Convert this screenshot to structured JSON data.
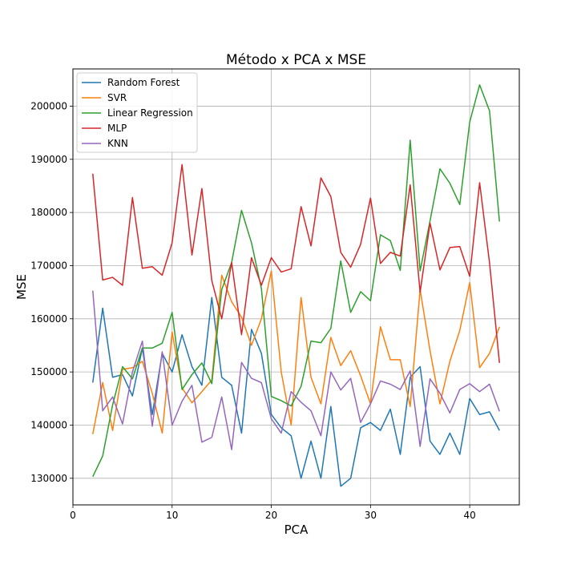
{
  "chart_data": {
    "type": "line",
    "title": "Método x PCA x MSE",
    "xlabel": "PCA",
    "ylabel": "MSE",
    "xlim": [
      0,
      45
    ],
    "ylim": [
      125000,
      207000
    ],
    "xticks": [
      0,
      10,
      20,
      30,
      40
    ],
    "yticks": [
      130000,
      140000,
      150000,
      160000,
      170000,
      180000,
      190000,
      200000
    ],
    "xtick_labels": [
      "0",
      "10",
      "20",
      "30",
      "40"
    ],
    "ytick_labels": [
      "130000",
      "140000",
      "150000",
      "160000",
      "170000",
      "180000",
      "190000",
      "200000"
    ],
    "grid": true,
    "legend_position": "top-left",
    "x": [
      2,
      3,
      4,
      5,
      6,
      7,
      8,
      9,
      10,
      11,
      12,
      13,
      14,
      15,
      16,
      17,
      18,
      19,
      20,
      21,
      22,
      23,
      24,
      25,
      26,
      27,
      28,
      29,
      30,
      31,
      32,
      33,
      34,
      35,
      36,
      37,
      38,
      39,
      40,
      41,
      42,
      43
    ],
    "series": [
      {
        "name": "Random Forest",
        "color": "#1f77b4",
        "values": [
          148000,
          162000,
          149000,
          149500,
          145500,
          154500,
          142000,
          153500,
          150000,
          157000,
          151000,
          147500,
          164000,
          149000,
          147500,
          138500,
          158000,
          153500,
          142000,
          139500,
          138000,
          130000,
          137000,
          130000,
          143500,
          128500,
          130000,
          139500,
          140500,
          139000,
          143000,
          134500,
          149000,
          151000,
          137000,
          134500,
          138500,
          134500,
          145000,
          142000,
          142500,
          139000
        ]
      },
      {
        "name": "SVR",
        "color": "#ff7f0e",
        "values": [
          138300,
          148000,
          139000,
          150500,
          150800,
          152000,
          146000,
          138500,
          157500,
          147000,
          144200,
          146300,
          148500,
          168200,
          163200,
          160300,
          155000,
          160000,
          169000,
          150000,
          140000,
          164000,
          149000,
          144000,
          156500,
          151200,
          154000,
          149300,
          144000,
          158500,
          152300,
          152300,
          143500,
          165500,
          154000,
          144000,
          152000,
          157800,
          166800,
          150800,
          153500,
          158500
        ]
      },
      {
        "name": "Linear Regression",
        "color": "#2ca02c",
        "values": [
          130300,
          134200,
          143800,
          151000,
          148700,
          154500,
          154500,
          155400,
          161200,
          146700,
          149500,
          151700,
          147800,
          165500,
          170600,
          180400,
          174300,
          165700,
          145400,
          144600,
          143600,
          147300,
          155800,
          155500,
          158200,
          170900,
          161200,
          165100,
          163400,
          175800,
          174700,
          169100,
          193600,
          169000,
          178400,
          188200,
          185500,
          181500,
          197000,
          204000,
          199100,
          178300
        ]
      },
      {
        "name": "MLP",
        "color": "#d62728",
        "values": [
          187300,
          167300,
          167800,
          166300,
          182800,
          169500,
          169800,
          168200,
          174300,
          189000,
          172000,
          184500,
          167200,
          160000,
          170600,
          157000,
          171500,
          166300,
          171500,
          168800,
          169400,
          181100,
          173700,
          186500,
          183000,
          172500,
          169700,
          174000,
          182700,
          170400,
          172500,
          171800,
          185200,
          165000,
          178000,
          169200,
          173400,
          173600,
          168000,
          185600,
          170500,
          151700
        ]
      },
      {
        "name": "KNN",
        "color": "#9467bd",
        "values": [
          165300,
          142700,
          145300,
          140200,
          150000,
          155800,
          139800,
          153800,
          140000,
          144500,
          147500,
          136800,
          137700,
          145300,
          135400,
          151800,
          148800,
          148000,
          141200,
          138500,
          146300,
          144300,
          142700,
          138000,
          150000,
          146600,
          148800,
          140500,
          144000,
          148300,
          147700,
          146700,
          150200,
          136000,
          148700,
          146000,
          142300,
          146700,
          147800,
          146300,
          147700,
          142600
        ]
      }
    ]
  }
}
